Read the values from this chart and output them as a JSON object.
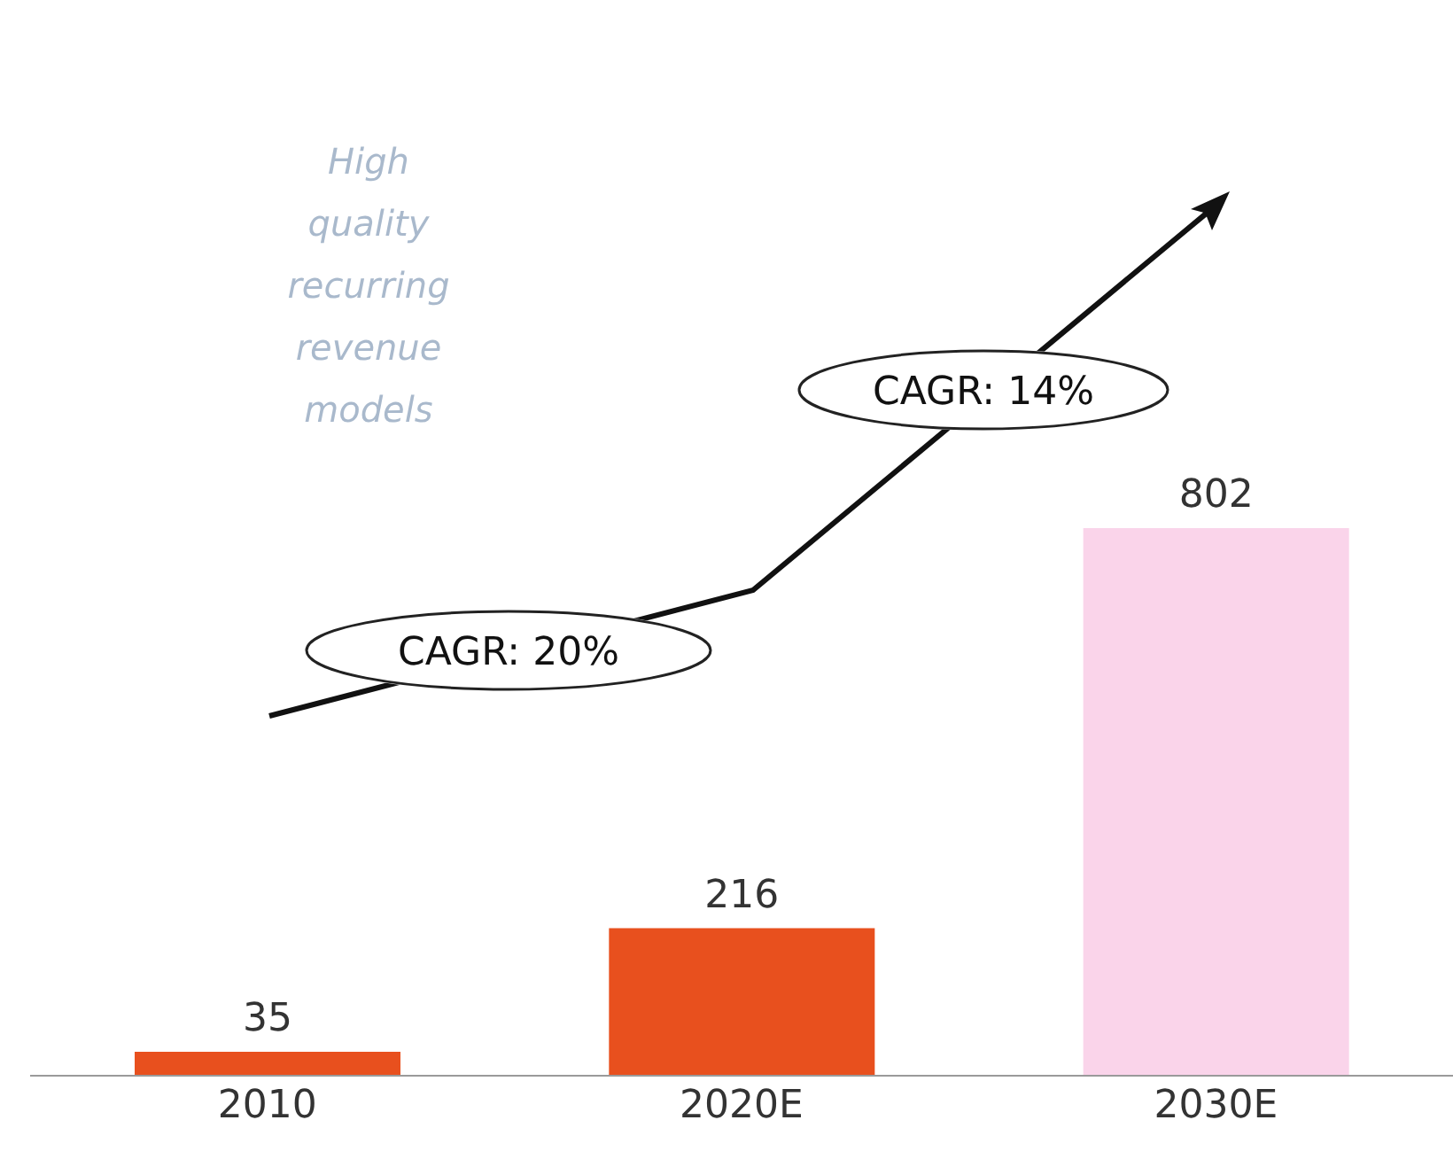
{
  "chart_data": {
    "type": "bar",
    "categories": [
      "2010",
      "2020E",
      "2030E"
    ],
    "values": [
      35,
      216,
      802
    ],
    "colors": [
      "#e8501e",
      "#e8501e",
      "#fad4ea"
    ],
    "data_labels": true,
    "annotations": [
      "High quality recurring revenue models",
      "CAGR: 20%",
      "CAGR: 14%"
    ]
  }
}
